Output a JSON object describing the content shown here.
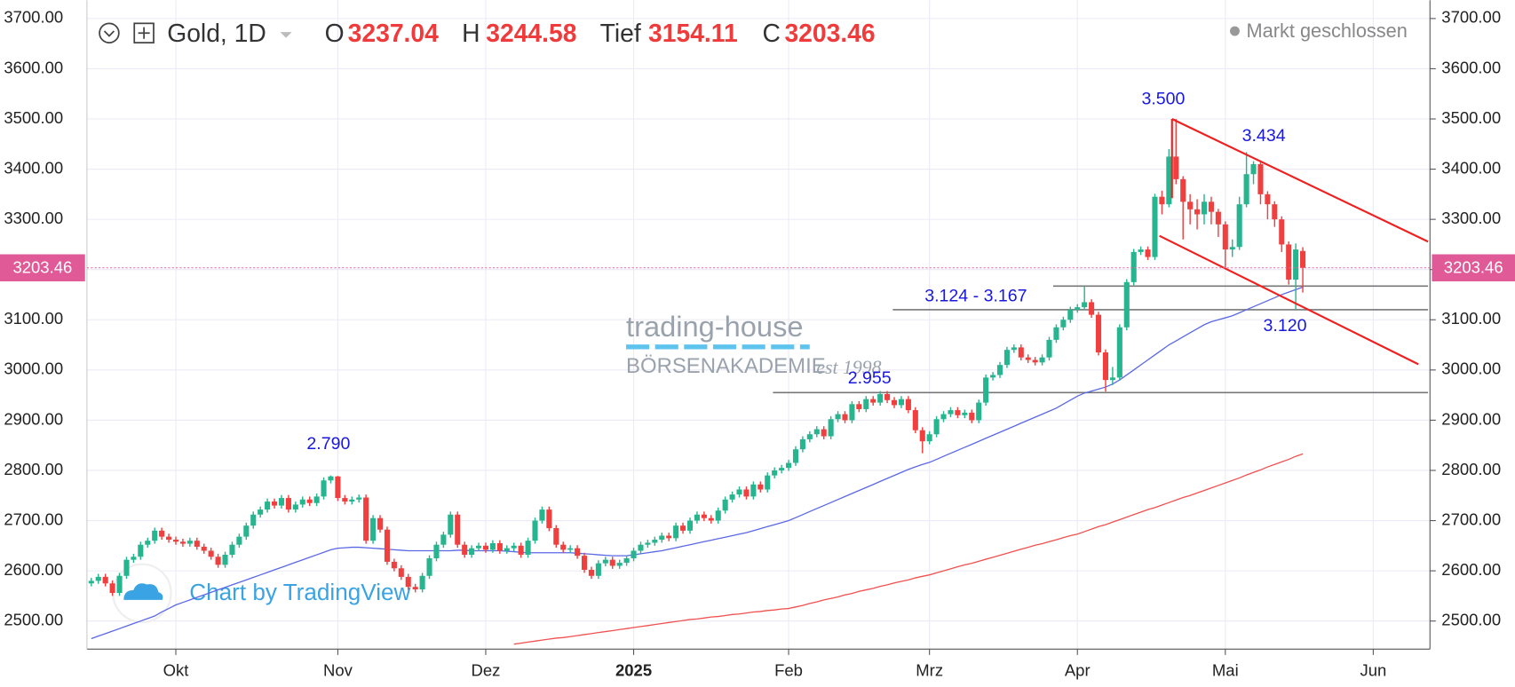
{
  "chart_data": {
    "type": "candlestick",
    "symbol": "Gold, 1D",
    "ohlc_labels": [
      "O",
      "H",
      "Tief",
      "C"
    ],
    "status": "Markt geschlossen",
    "watermark": {
      "brand": "trading-house",
      "sub": "BÖRSENAKADEMIE",
      "est": "est 1998"
    },
    "credit": "Chart by TradingView",
    "categories": [
      null,
      null,
      null,
      null,
      null,
      null,
      null,
      null,
      null,
      null,
      null,
      null,
      "Okt",
      null,
      null,
      null,
      null,
      null,
      null,
      null,
      null,
      null,
      null,
      null,
      null,
      null,
      null,
      null,
      null,
      null,
      null,
      null,
      null,
      null,
      null,
      "Nov",
      null,
      null,
      null,
      null,
      null,
      null,
      null,
      null,
      null,
      null,
      null,
      null,
      null,
      null,
      null,
      null,
      null,
      null,
      null,
      null,
      "Dez",
      null,
      null,
      null,
      null,
      null,
      null,
      null,
      null,
      null,
      null,
      null,
      null,
      null,
      null,
      null,
      null,
      null,
      null,
      null,
      null,
      "2025",
      null,
      null,
      null,
      null,
      null,
      null,
      null,
      null,
      null,
      null,
      null,
      null,
      null,
      null,
      null,
      null,
      null,
      null,
      null,
      null,
      null,
      "Feb",
      null,
      null,
      null,
      null,
      null,
      null,
      null,
      null,
      null,
      null,
      null,
      null,
      null,
      null,
      null,
      null,
      null,
      null,
      null,
      "Mrz",
      null,
      null,
      null,
      null,
      null,
      null,
      null,
      null,
      null,
      null,
      null,
      null,
      null,
      null,
      null,
      null,
      null,
      null,
      null,
      null,
      "Apr",
      null,
      null,
      null,
      null,
      null,
      null,
      null,
      null,
      null,
      null,
      null,
      null,
      null,
      null,
      null,
      null,
      null,
      null,
      null,
      null,
      "Mai",
      null,
      null,
      null,
      null,
      null,
      null,
      null,
      null,
      null,
      null,
      null
    ],
    "future_categories": [
      "Jun"
    ],
    "open": [
      2575,
      2580,
      2588,
      2575,
      2556,
      2590,
      2622,
      2628,
      2652,
      2660,
      2680,
      2668,
      2662,
      2658,
      2654,
      2660,
      2648,
      2640,
      2628,
      2612,
      2632,
      2652,
      2668,
      2690,
      2712,
      2722,
      2738,
      2730,
      2745,
      2722,
      2732,
      2742,
      2735,
      2748,
      2780,
      2788,
      2745,
      2738,
      2742,
      2746,
      2660,
      2705,
      2682,
      2618,
      2605,
      2588,
      2568,
      2563,
      2590,
      2625,
      2652,
      2672,
      2712,
      2652,
      2632,
      2645,
      2650,
      2642,
      2655,
      2640,
      2645,
      2650,
      2632,
      2660,
      2700,
      2722,
      2685,
      2652,
      2642,
      2645,
      2630,
      2602,
      2590,
      2615,
      2622,
      2610,
      2616,
      2625,
      2640,
      2652,
      2656,
      2662,
      2670,
      2665,
      2690,
      2680,
      2700,
      2712,
      2705,
      2700,
      2720,
      2742,
      2752,
      2762,
      2748,
      2772,
      2762,
      2790,
      2800,
      2805,
      2815,
      2842,
      2862,
      2872,
      2882,
      2868,
      2902,
      2912,
      2900,
      2932,
      2922,
      2942,
      2935,
      2952,
      2940,
      2930,
      2942,
      2920,
      2880,
      2858,
      2872,
      2902,
      2912,
      2920,
      2910,
      2915,
      2900,
      2935,
      2985,
      2990,
      3010,
      3040,
      3045,
      3025,
      3020,
      3015,
      3025,
      3060,
      3085,
      3100,
      3120,
      3125,
      3135,
      3110,
      3035,
      2980,
      2985,
      3085,
      3175,
      3235,
      3240,
      3225,
      3345,
      3330,
      3425,
      3380,
      3335,
      3320,
      3310,
      3335,
      3315,
      3290,
      3240,
      3245,
      3330,
      3390,
      3410,
      3350,
      3330,
      3300,
      3250,
      3180,
      3237.04
    ],
    "high": [
      2586,
      2594,
      2594,
      2581,
      2596,
      2628,
      2634,
      2658,
      2666,
      2686,
      2686,
      2674,
      2668,
      2664,
      2666,
      2666,
      2654,
      2646,
      2634,
      2638,
      2658,
      2674,
      2696,
      2718,
      2728,
      2744,
      2744,
      2751,
      2751,
      2738,
      2748,
      2748,
      2754,
      2786,
      2790,
      2789,
      2751,
      2748,
      2752,
      2752,
      2711,
      2711,
      2688,
      2624,
      2611,
      2594,
      2574,
      2596,
      2631,
      2658,
      2678,
      2718,
      2718,
      2658,
      2651,
      2656,
      2656,
      2661,
      2661,
      2651,
      2656,
      2656,
      2666,
      2706,
      2728,
      2728,
      2691,
      2658,
      2651,
      2651,
      2636,
      2608,
      2621,
      2628,
      2628,
      2622,
      2631,
      2646,
      2658,
      2662,
      2668,
      2676,
      2676,
      2696,
      2696,
      2706,
      2718,
      2718,
      2711,
      2726,
      2748,
      2758,
      2768,
      2768,
      2778,
      2778,
      2796,
      2806,
      2811,
      2821,
      2848,
      2868,
      2878,
      2888,
      2888,
      2908,
      2918,
      2918,
      2938,
      2938,
      2948,
      2948,
      2958,
      2958,
      2946,
      2948,
      2948,
      2926,
      2886,
      2878,
      2908,
      2918,
      2926,
      2926,
      2921,
      2921,
      2941,
      2991,
      2996,
      3016,
      3046,
      3051,
      3051,
      3031,
      3026,
      3031,
      3066,
      3091,
      3106,
      3126,
      3131,
      3167,
      3141,
      3116,
      3041,
      3006,
      3091,
      3181,
      3241,
      3246,
      3246,
      3351,
      3357,
      3440,
      3500,
      3386,
      3350,
      3340,
      3350,
      3345,
      3321,
      3296,
      3260,
      3345,
      3434,
      3416,
      3416,
      3356,
      3336,
      3306,
      3256,
      3252,
      3244.58
    ],
    "low": [
      2569,
      2574,
      2569,
      2550,
      2550,
      2584,
      2616,
      2622,
      2646,
      2654,
      2662,
      2656,
      2652,
      2648,
      2648,
      2642,
      2634,
      2622,
      2606,
      2606,
      2626,
      2646,
      2662,
      2684,
      2706,
      2716,
      2724,
      2724,
      2716,
      2716,
      2726,
      2729,
      2729,
      2742,
      2774,
      2739,
      2732,
      2732,
      2736,
      2654,
      2654,
      2676,
      2612,
      2599,
      2582,
      2562,
      2557,
      2557,
      2584,
      2619,
      2646,
      2666,
      2646,
      2626,
      2626,
      2639,
      2636,
      2636,
      2634,
      2634,
      2639,
      2626,
      2626,
      2654,
      2694,
      2679,
      2646,
      2636,
      2636,
      2624,
      2596,
      2584,
      2584,
      2609,
      2604,
      2604,
      2610,
      2619,
      2634,
      2646,
      2650,
      2656,
      2659,
      2659,
      2674,
      2674,
      2694,
      2699,
      2694,
      2694,
      2714,
      2736,
      2746,
      2742,
      2742,
      2756,
      2756,
      2784,
      2794,
      2799,
      2809,
      2836,
      2856,
      2866,
      2862,
      2862,
      2896,
      2894,
      2894,
      2916,
      2916,
      2929,
      2929,
      2934,
      2924,
      2924,
      2914,
      2874,
      2834,
      2852,
      2866,
      2896,
      2906,
      2904,
      2904,
      2894,
      2894,
      2929,
      2979,
      2984,
      3004,
      3034,
      3019,
      3014,
      3009,
      3009,
      3019,
      3054,
      3079,
      3094,
      3114,
      3119,
      3104,
      3029,
      2957,
      2970,
      2979,
      3079,
      3169,
      3229,
      3219,
      3219,
      3310,
      3324,
      3370,
      3260,
      3290,
      3280,
      3290,
      3290,
      3265,
      3204,
      3225,
      3239,
      3324,
      3370,
      3330,
      3300,
      3285,
      3235,
      3170,
      3120,
      3154.11
    ],
    "close": [
      2580,
      2588,
      2575,
      2556,
      2590,
      2622,
      2628,
      2652,
      2660,
      2680,
      2668,
      2662,
      2658,
      2654,
      2660,
      2648,
      2640,
      2628,
      2612,
      2632,
      2652,
      2668,
      2690,
      2712,
      2722,
      2738,
      2730,
      2745,
      2722,
      2732,
      2742,
      2735,
      2748,
      2780,
      2788,
      2745,
      2738,
      2742,
      2746,
      2660,
      2705,
      2682,
      2618,
      2605,
      2588,
      2568,
      2563,
      2590,
      2625,
      2652,
      2672,
      2712,
      2652,
      2632,
      2645,
      2650,
      2642,
      2655,
      2640,
      2645,
      2650,
      2632,
      2660,
      2700,
      2722,
      2685,
      2652,
      2642,
      2645,
      2630,
      2602,
      2590,
      2615,
      2622,
      2610,
      2616,
      2625,
      2640,
      2652,
      2656,
      2662,
      2670,
      2665,
      2690,
      2680,
      2700,
      2712,
      2705,
      2700,
      2720,
      2742,
      2752,
      2762,
      2748,
      2772,
      2762,
      2790,
      2800,
      2805,
      2815,
      2842,
      2862,
      2872,
      2882,
      2868,
      2902,
      2912,
      2900,
      2932,
      2922,
      2942,
      2935,
      2952,
      2940,
      2930,
      2942,
      2920,
      2880,
      2858,
      2872,
      2902,
      2912,
      2920,
      2910,
      2915,
      2900,
      2935,
      2985,
      2990,
      3010,
      3040,
      3045,
      3025,
      3020,
      3015,
      3025,
      3060,
      3085,
      3100,
      3120,
      3125,
      3135,
      3110,
      3035,
      2980,
      2985,
      3085,
      3175,
      3235,
      3240,
      3225,
      3345,
      3330,
      3425,
      3380,
      3335,
      3320,
      3310,
      3335,
      3315,
      3290,
      3240,
      3245,
      3330,
      3390,
      3410,
      3350,
      3330,
      3300,
      3250,
      3180,
      3240,
      3203.46
    ],
    "up_color": "#26b58f",
    "down_color": "#ef3f3f",
    "lines": [
      {
        "color": "#5a68e6",
        "values": [
          2465,
          2470,
          2475,
          2480,
          2485,
          2490,
          2495,
          2500,
          2505,
          2510,
          2518,
          2525,
          2532,
          2537,
          2542,
          2547,
          2552,
          2557,
          2562,
          2567,
          2572,
          2577,
          2582,
          2587,
          2592,
          2597,
          2602,
          2607,
          2612,
          2617,
          2622,
          2627,
          2632,
          2637,
          2642,
          2645,
          2646,
          2647,
          2647,
          2646,
          2645,
          2644,
          2643,
          2642,
          2641,
          2640,
          2640,
          2640,
          2640,
          2640,
          2640,
          2640,
          2641,
          2641,
          2640,
          2640,
          2640,
          2640,
          2640,
          2639,
          2638,
          2637,
          2636,
          2636,
          2636,
          2636,
          2636,
          2636,
          2636,
          2635,
          2634,
          2633,
          2632,
          2631,
          2630,
          2630,
          2630,
          2632,
          2634,
          2636,
          2638,
          2640,
          2643,
          2646,
          2649,
          2652,
          2655,
          2658,
          2661,
          2664,
          2667,
          2670,
          2673,
          2676,
          2680,
          2684,
          2688,
          2692,
          2696,
          2700,
          2706,
          2712,
          2718,
          2724,
          2730,
          2736,
          2742,
          2748,
          2754,
          2760,
          2766,
          2772,
          2778,
          2784,
          2790,
          2796,
          2802,
          2807,
          2812,
          2816,
          2822,
          2828,
          2834,
          2840,
          2846,
          2852,
          2858,
          2864,
          2870,
          2876,
          2882,
          2888,
          2894,
          2900,
          2906,
          2912,
          2918,
          2924,
          2932,
          2940,
          2948,
          2954,
          2958,
          2962,
          2966,
          2972,
          2980,
          2990,
          3000,
          3010,
          3020,
          3030,
          3040,
          3050,
          3058,
          3066,
          3074,
          3082,
          3090,
          3096,
          3100,
          3104,
          3108,
          3114,
          3120,
          3126,
          3132,
          3138,
          3144,
          3150,
          3155,
          3160,
          3165
        ]
      },
      {
        "color": "#f05050",
        "values": [
          null,
          null,
          null,
          null,
          null,
          null,
          null,
          null,
          null,
          null,
          null,
          null,
          null,
          null,
          null,
          null,
          null,
          null,
          null,
          null,
          null,
          null,
          null,
          null,
          null,
          null,
          null,
          null,
          null,
          null,
          null,
          null,
          null,
          null,
          null,
          null,
          null,
          null,
          null,
          null,
          null,
          null,
          null,
          null,
          null,
          null,
          null,
          null,
          null,
          null,
          null,
          null,
          null,
          null,
          null,
          null,
          null,
          null,
          null,
          null,
          2454,
          2456,
          2458,
          2460,
          2462,
          2464,
          2466,
          2467,
          2469,
          2471,
          2473,
          2475,
          2477,
          2479,
          2481,
          2483,
          2485,
          2487,
          2489,
          2491,
          2493,
          2495,
          2497,
          2499,
          2501,
          2503,
          2504,
          2506,
          2508,
          2509,
          2511,
          2513,
          2514,
          2516,
          2518,
          2519,
          2521,
          2522,
          2524,
          2525,
          2528,
          2531,
          2535,
          2538,
          2542,
          2545,
          2548,
          2552,
          2555,
          2559,
          2562,
          2565,
          2569,
          2572,
          2576,
          2579,
          2582,
          2586,
          2589,
          2592,
          2596,
          2600,
          2604,
          2608,
          2612,
          2615,
          2619,
          2623,
          2627,
          2631,
          2635,
          2639,
          2643,
          2647,
          2651,
          2654,
          2658,
          2662,
          2666,
          2670,
          2673,
          2678,
          2683,
          2688,
          2692,
          2697,
          2702,
          2707,
          2712,
          2717,
          2722,
          2726,
          2731,
          2736,
          2741,
          2746,
          2750,
          2755,
          2760,
          2765,
          2770,
          2775,
          2780,
          2785,
          2791,
          2796,
          2801,
          2807,
          2812,
          2817,
          2822,
          2828,
          2833
        ]
      }
    ],
    "levels": [
      2955,
      3120,
      3167
    ],
    "annotations": [
      "3.500",
      "3.434",
      "2.790",
      "2.955",
      "3.124 - 3.167",
      "3.120"
    ],
    "ylim": [
      2444,
      3736.5
    ],
    "yticks": [
      {
        "value": 2500,
        "label": "2500.00"
      },
      {
        "value": 2600,
        "label": "2600.00"
      },
      {
        "value": 2700,
        "label": "2700.00"
      },
      {
        "value": 2800,
        "label": "2800.00"
      },
      {
        "value": 2900,
        "label": "2900.00"
      },
      {
        "value": 3000,
        "label": "3000.00"
      },
      {
        "value": 3100,
        "label": "3100.00"
      },
      {
        "value": 3200,
        "label": "3200.00"
      },
      {
        "value": 3300,
        "label": "3300.00"
      },
      {
        "value": 3400,
        "label": "3400.00"
      },
      {
        "value": 3500,
        "label": "3500.00"
      },
      {
        "value": 3600,
        "label": "3600.00"
      },
      {
        "value": 3700,
        "label": "3700.00"
      }
    ],
    "grid": true
  }
}
